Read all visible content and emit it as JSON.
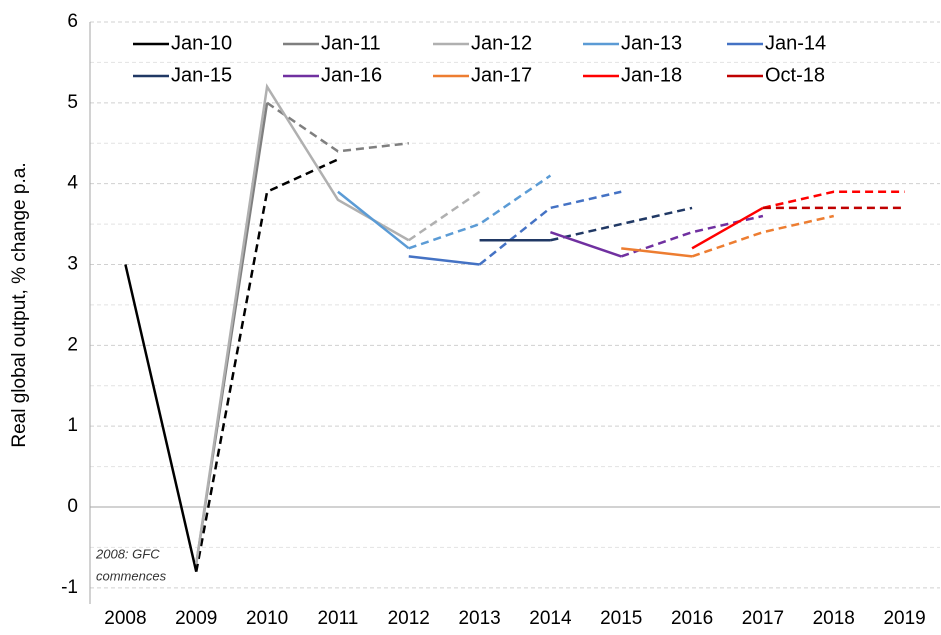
{
  "chart_data": {
    "type": "line",
    "y_label": "Real global output, % change p.a.",
    "annotation": [
      "2008: GFC",
      "commences"
    ],
    "x": [
      2008,
      2009,
      2010,
      2011,
      2012,
      2013,
      2014,
      2015,
      2016,
      2017,
      2018,
      2019
    ],
    "xlim": [
      2007.5,
      2019.5
    ],
    "xticks": [
      2008,
      2009,
      2010,
      2011,
      2012,
      2013,
      2014,
      2015,
      2016,
      2017,
      2018,
      2019
    ],
    "ylim": [
      -1.2,
      6
    ],
    "yticks": [
      -1,
      0,
      1,
      2,
      3,
      4,
      5,
      6
    ],
    "grid": true,
    "series": [
      {
        "name": "Jan-10",
        "color": "#000000",
        "values": [
          3.0,
          -0.8,
          null,
          null,
          null,
          null,
          null,
          null,
          null,
          null,
          null,
          null
        ],
        "forecast_values": [
          null,
          -0.8,
          3.9,
          4.3,
          null,
          null,
          null,
          null,
          null,
          null,
          null,
          null
        ]
      },
      {
        "name": "Jan-11",
        "color": "#7f7f7f",
        "values": [
          null,
          -0.7,
          5.0,
          null,
          null,
          null,
          null,
          null,
          null,
          null,
          null,
          null
        ],
        "forecast_values": [
          null,
          null,
          5.0,
          4.4,
          4.5,
          null,
          null,
          null,
          null,
          null,
          null,
          null
        ]
      },
      {
        "name": "Jan-12",
        "color": "#b0b0b0",
        "values": [
          null,
          -0.7,
          5.2,
          3.8,
          3.3,
          null,
          null,
          null,
          null,
          null,
          null,
          null
        ],
        "forecast_values": [
          null,
          null,
          null,
          null,
          3.3,
          3.9,
          null,
          null,
          null,
          null,
          null,
          null
        ]
      },
      {
        "name": "Jan-13",
        "color": "#5b9bd5",
        "values": [
          null,
          null,
          null,
          3.9,
          3.2,
          null,
          null,
          null,
          null,
          null,
          null,
          null
        ],
        "forecast_values": [
          null,
          null,
          null,
          null,
          3.2,
          3.5,
          4.1,
          null,
          null,
          null,
          null,
          null
        ]
      },
      {
        "name": "Jan-14",
        "color": "#4472c4",
        "values": [
          null,
          null,
          null,
          null,
          3.1,
          3.0,
          null,
          null,
          null,
          null,
          null,
          null
        ],
        "forecast_values": [
          null,
          null,
          null,
          null,
          null,
          3.0,
          3.7,
          3.9,
          null,
          null,
          null,
          null
        ]
      },
      {
        "name": "Jan-15",
        "color": "#203864",
        "values": [
          null,
          null,
          null,
          null,
          null,
          3.3,
          3.3,
          null,
          null,
          null,
          null,
          null
        ],
        "forecast_values": [
          null,
          null,
          null,
          null,
          null,
          null,
          3.3,
          3.5,
          3.7,
          null,
          null,
          null
        ]
      },
      {
        "name": "Jan-16",
        "color": "#7030a0",
        "values": [
          null,
          null,
          null,
          null,
          null,
          null,
          3.4,
          3.1,
          null,
          null,
          null,
          null
        ],
        "forecast_values": [
          null,
          null,
          null,
          null,
          null,
          null,
          null,
          3.1,
          3.4,
          3.6,
          null,
          null
        ]
      },
      {
        "name": "Jan-17",
        "color": "#ed7d31",
        "values": [
          null,
          null,
          null,
          null,
          null,
          null,
          null,
          3.2,
          3.1,
          null,
          null,
          null
        ],
        "forecast_values": [
          null,
          null,
          null,
          null,
          null,
          null,
          null,
          null,
          3.1,
          3.4,
          3.6,
          null
        ]
      },
      {
        "name": "Jan-18",
        "color": "#ff0000",
        "values": [
          null,
          null,
          null,
          null,
          null,
          null,
          null,
          null,
          3.2,
          3.7,
          null,
          null
        ],
        "forecast_values": [
          null,
          null,
          null,
          null,
          null,
          null,
          null,
          null,
          null,
          3.7,
          3.9,
          3.9
        ]
      },
      {
        "name": "Oct-18",
        "color": "#c00000",
        "values": [
          null,
          null,
          null,
          null,
          null,
          null,
          null,
          null,
          null,
          null,
          null,
          null
        ],
        "forecast_values": [
          null,
          null,
          null,
          null,
          null,
          null,
          null,
          null,
          null,
          3.7,
          3.7,
          3.7
        ]
      }
    ]
  }
}
